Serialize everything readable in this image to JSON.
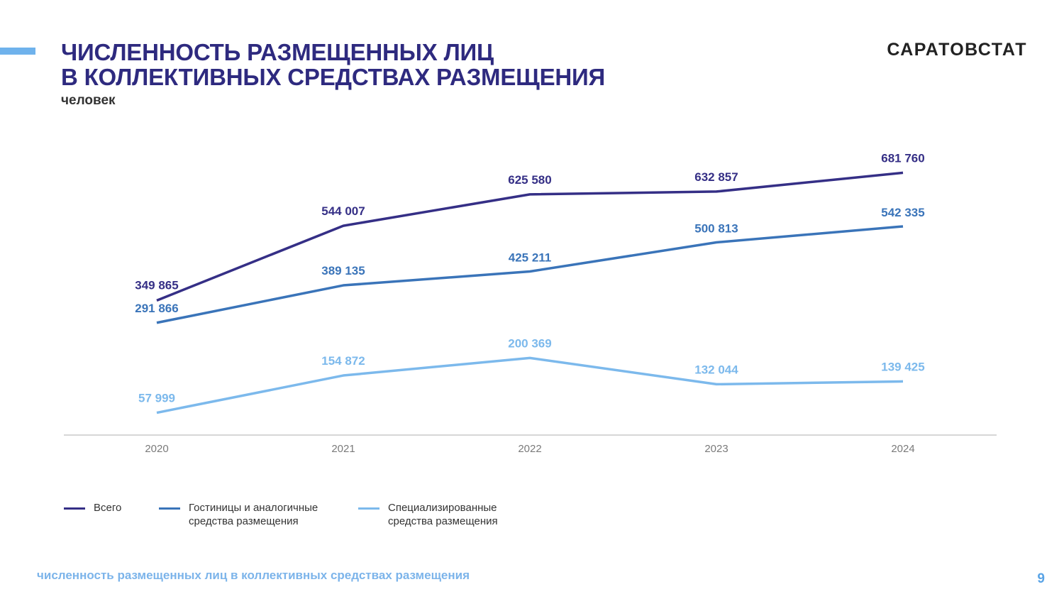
{
  "header": {
    "title_line1": "ЧИСЛЕННОСТЬ РАЗМЕЩЕННЫХ ЛИЦ",
    "title_line2": "В КОЛЛЕКТИВНЫХ СРЕДСТВАХ РАЗМЕЩЕНИЯ",
    "unit": "человек",
    "brand": "САРАТОВСТАТ"
  },
  "colors": {
    "title": "#2e2a7f",
    "accent": "#6fb2ec",
    "series": [
      "#352f86",
      "#3a74b9",
      "#7cb9ec"
    ]
  },
  "chart_data": {
    "type": "line",
    "x": [
      "2020",
      "2021",
      "2022",
      "2023",
      "2024"
    ],
    "series": [
      {
        "name": "Всего",
        "values": [
          349865,
          544007,
          625580,
          632857,
          681760
        ],
        "labels": [
          "349 865",
          "544 007",
          "625 580",
          "632 857",
          "681 760"
        ]
      },
      {
        "name": "Гостиницы и аналогичные\nсредства размещения",
        "values": [
          291866,
          389135,
          425211,
          500813,
          542335
        ],
        "labels": [
          "291 866",
          "389 135",
          "425 211",
          "500 813",
          "542 335"
        ]
      },
      {
        "name": "Специализированные\nсредства размещения",
        "values": [
          57999,
          154872,
          200369,
          132044,
          139425
        ],
        "labels": [
          "57 999",
          "154 872",
          "200 369",
          "132 044",
          "139 425"
        ]
      }
    ],
    "ylim": [
      0,
      760000
    ],
    "grid": false,
    "legend": "bottom-left"
  },
  "footer": {
    "text": "численность размещенных лиц в коллективных средствах размещения",
    "page": "9"
  }
}
